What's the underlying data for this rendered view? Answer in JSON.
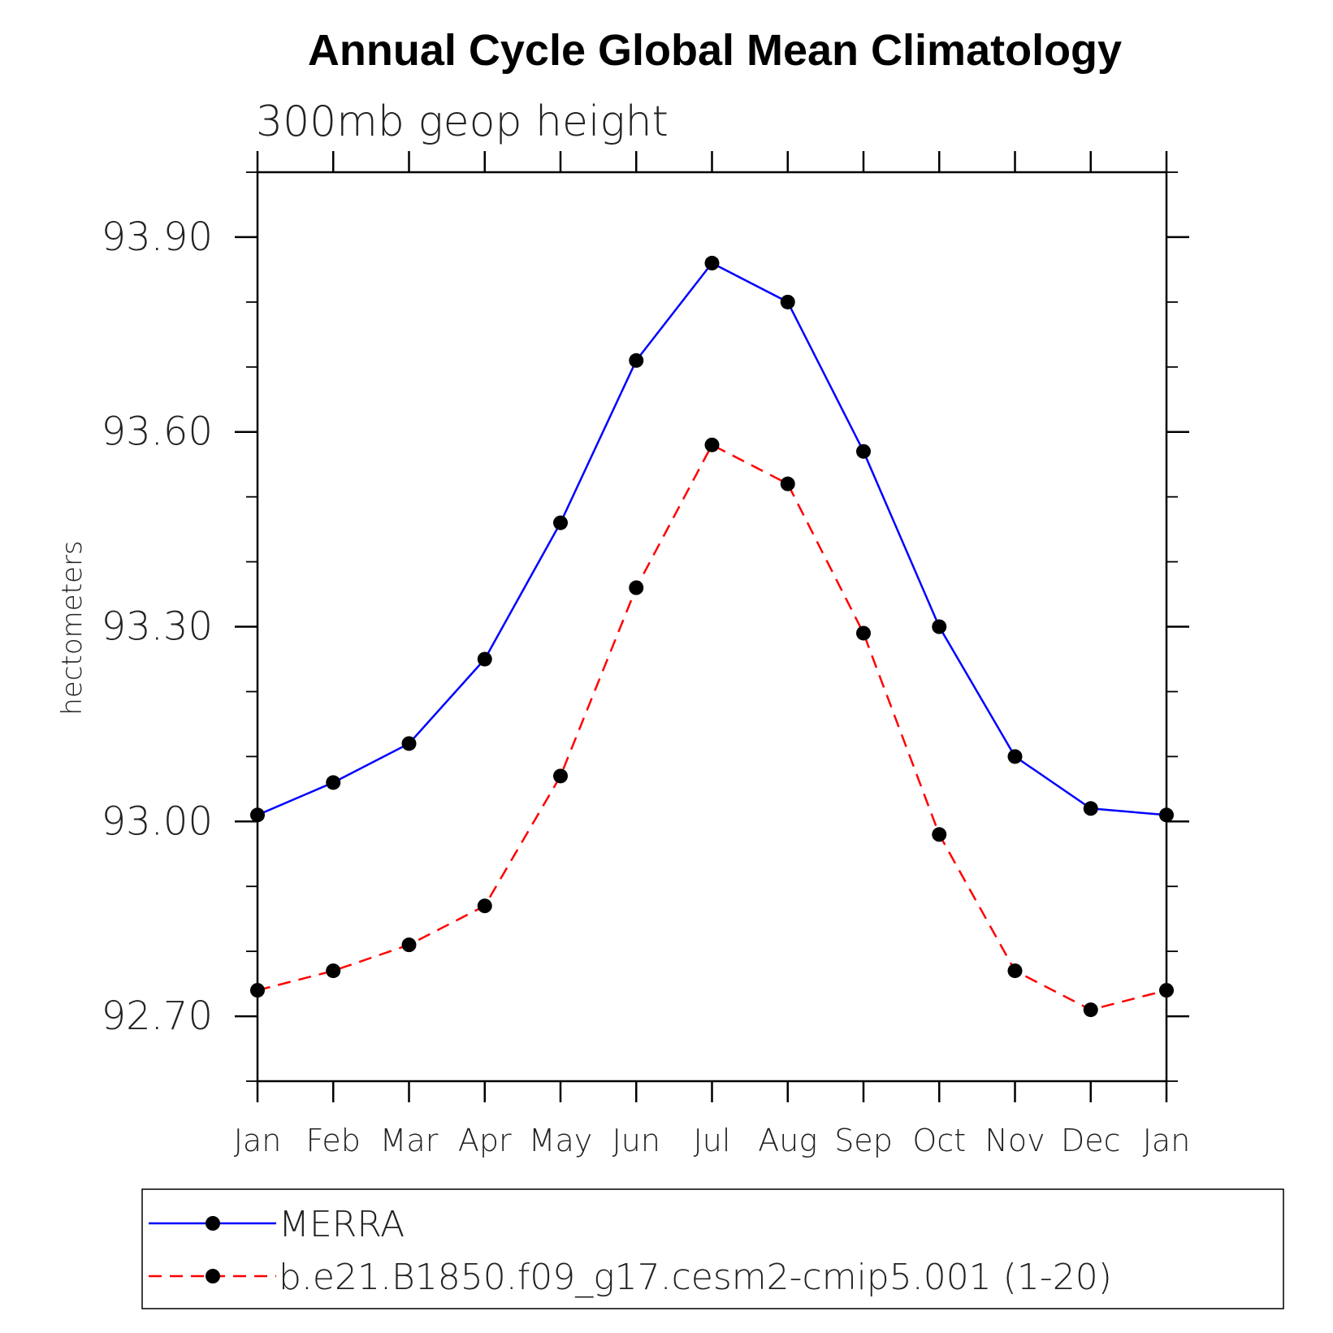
{
  "chart_data": {
    "type": "line",
    "title": "Annual Cycle Global Mean Climatology",
    "subtitle": "300mb geop height",
    "xlabel": "",
    "ylabel": "hectometers",
    "categories": [
      "Jan",
      "Feb",
      "Mar",
      "Apr",
      "May",
      "Jun",
      "Jul",
      "Aug",
      "Sep",
      "Oct",
      "Nov",
      "Dec",
      "Jan"
    ],
    "ylim": [
      92.6,
      94.0
    ],
    "yticks": [
      "93.90",
      "93.60",
      "93.30",
      "93.00",
      "92.70"
    ],
    "ytick_values": [
      93.9,
      93.6,
      93.3,
      93.0,
      92.7
    ],
    "grid": false,
    "legend_placement": "bottom",
    "series": [
      {
        "name": "MERRA",
        "color": "#0000ff",
        "dash": "solid",
        "marker": "filled-circle",
        "values": [
          93.01,
          93.06,
          93.12,
          93.25,
          93.46,
          93.71,
          93.86,
          93.8,
          93.57,
          93.3,
          93.1,
          93.02,
          93.01
        ]
      },
      {
        "name": "b.e21.B1850.f09_g17.cesm2-cmip5.001 (1-20)",
        "color": "#ff0000",
        "dash": "dashed",
        "marker": "filled-circle",
        "values": [
          92.74,
          92.77,
          92.81,
          92.87,
          93.07,
          93.36,
          93.58,
          93.52,
          93.29,
          92.98,
          92.77,
          92.71,
          92.74
        ]
      }
    ]
  }
}
